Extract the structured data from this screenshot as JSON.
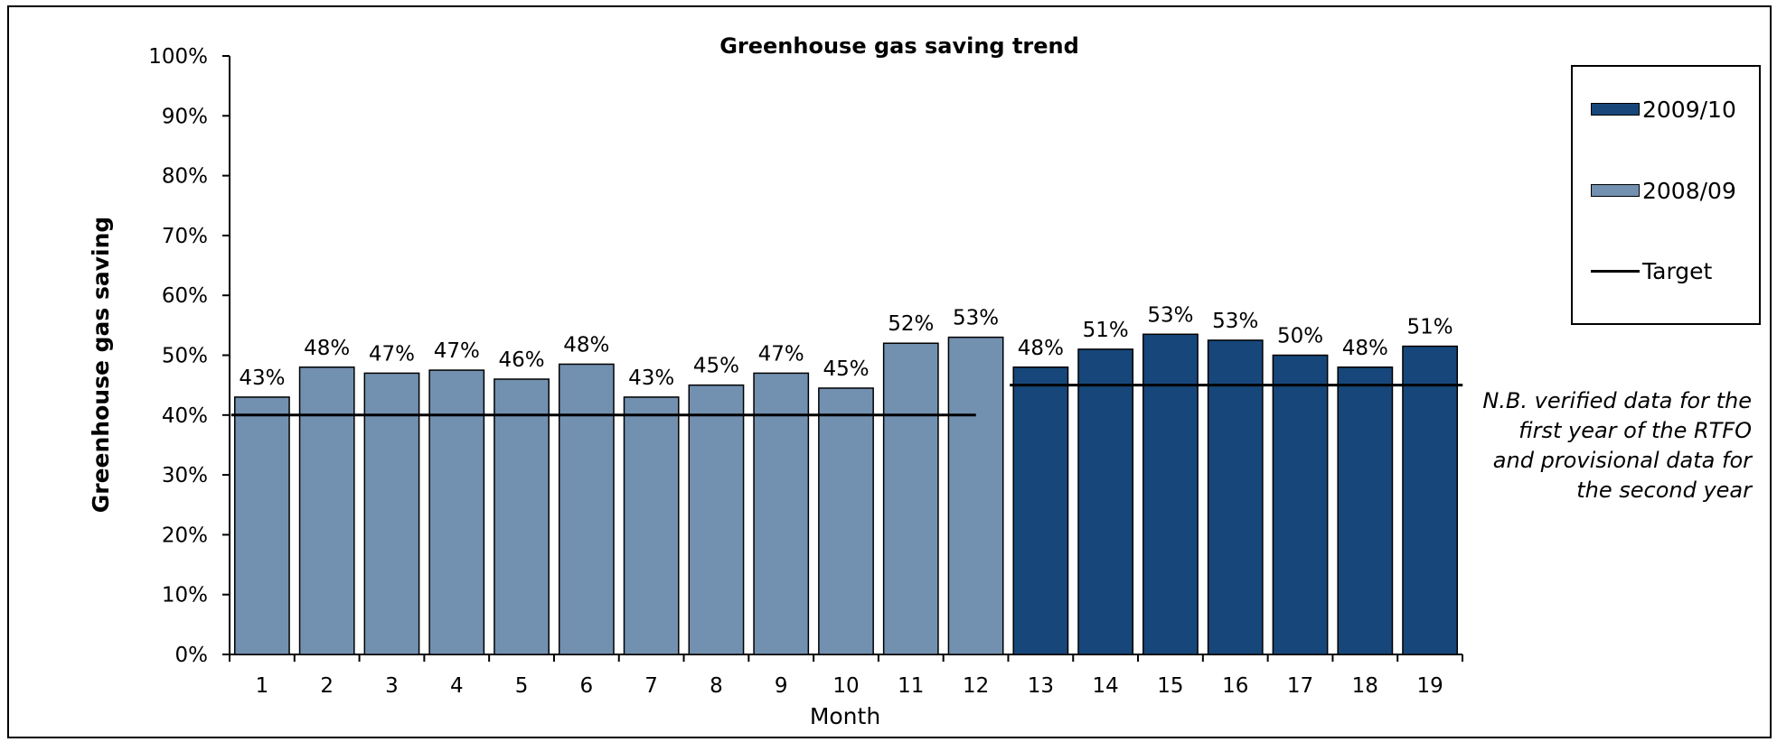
{
  "chart_data": {
    "type": "bar",
    "title": "Greenhouse gas saving trend",
    "xlabel": "Month",
    "ylabel": "Greenhouse gas saving",
    "ylim": [
      0,
      100
    ],
    "yticks": [
      "0%",
      "10%",
      "20%",
      "30%",
      "40%",
      "50%",
      "60%",
      "70%",
      "80%",
      "90%",
      "100%"
    ],
    "categories": [
      "1",
      "2",
      "3",
      "4",
      "5",
      "6",
      "7",
      "8",
      "9",
      "10",
      "11",
      "12",
      "13",
      "14",
      "15",
      "16",
      "17",
      "18",
      "19"
    ],
    "values": [
      43,
      48,
      47,
      47.5,
      46,
      48.5,
      43,
      45,
      47,
      44.5,
      52,
      53,
      48,
      51,
      53.5,
      52.5,
      50,
      48,
      51.5
    ],
    "data_labels": [
      "43%",
      "48%",
      "47%",
      "47%",
      "46%",
      "48%",
      "43%",
      "45%",
      "47%",
      "45%",
      "52%",
      "53%",
      "48%",
      "51%",
      "53%",
      "53%",
      "50%",
      "48%",
      "51%"
    ],
    "series": [
      {
        "name": "2008/09",
        "color": "#7290b0",
        "categories": [
          "1",
          "2",
          "3",
          "4",
          "5",
          "6",
          "7",
          "8",
          "9",
          "10",
          "11",
          "12"
        ]
      },
      {
        "name": "2009/10",
        "color": "#17477a",
        "categories": [
          "13",
          "14",
          "15",
          "16",
          "17",
          "18",
          "19"
        ]
      }
    ],
    "target": {
      "name": "Target",
      "segments": [
        {
          "from": "1",
          "to": "12",
          "value": 40
        },
        {
          "from": "13",
          "to": "19",
          "value": 45
        }
      ]
    },
    "legend": {
      "placement": "right",
      "items": [
        {
          "label": "2009/10",
          "kind": "bar",
          "color": "#17477a"
        },
        {
          "label": "2008/09",
          "kind": "bar",
          "color": "#7290b0"
        },
        {
          "label": "Target",
          "kind": "line",
          "color": "#000000"
        }
      ]
    },
    "grid": false,
    "note": "N.B. verified data for the first year of the RTFO and provisional data for the second year"
  }
}
